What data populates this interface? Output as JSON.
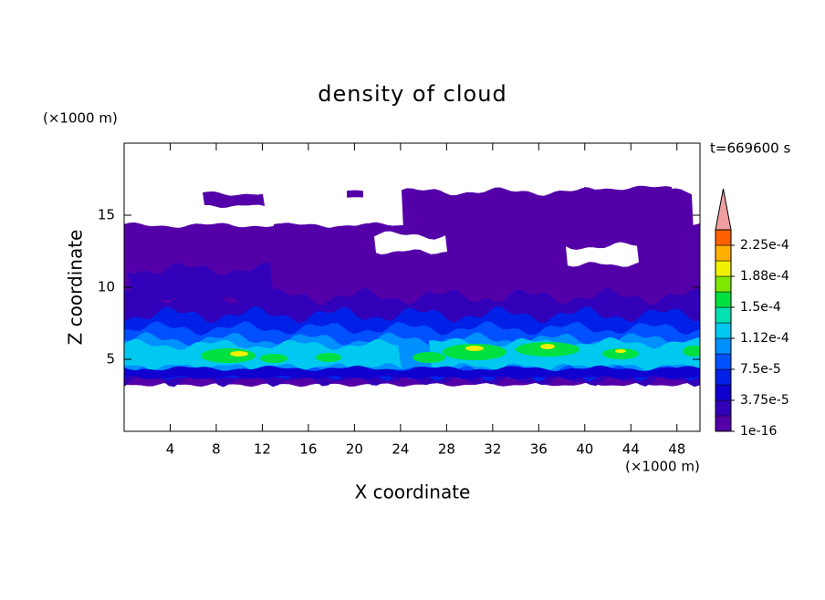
{
  "chart_data": {
    "type": "contour",
    "title": "density of cloud",
    "x_label": "X coordinate",
    "y_label": "Z coordinate",
    "x_unit": "(×1000 m)",
    "y_unit": "(×1000 m)",
    "annotation": "t=669600 s",
    "xlim": [
      0,
      50
    ],
    "xticks": [
      4,
      8,
      12,
      16,
      20,
      24,
      28,
      32,
      36,
      40,
      44,
      48
    ],
    "ylim": [
      0,
      20
    ],
    "yticks": [
      5,
      10,
      15
    ],
    "colorbar": {
      "lim": [
        1e-16,
        0.00024375
      ],
      "levels": [
        1e-16,
        1.875e-05,
        3.75e-05,
        5.625e-05,
        7.5e-05,
        9.375e-05,
        0.0001125,
        0.00013125,
        0.00015,
        0.00016875,
        0.0001875,
        0.00020625,
        0.000225,
        0.00024375
      ],
      "colors": [
        "#5400a8",
        "#3200b8",
        "#1000d0",
        "#0020e8",
        "#0050ff",
        "#0090ff",
        "#00c8f0",
        "#00e0b0",
        "#00e040",
        "#80e800",
        "#f0f000",
        "#ffb000",
        "#ff6000",
        "#f0a0a0"
      ],
      "ticks": [
        {
          "value": 1e-16,
          "label": "1e-16"
        },
        {
          "value": 3.75e-05,
          "label": "3.75e-5"
        },
        {
          "value": 7.5e-05,
          "label": "7.5e-5"
        },
        {
          "value": 0.0001125,
          "label": "1.12e-4"
        },
        {
          "value": 0.00015,
          "label": "1.5e-4"
        },
        {
          "value": 0.0001875,
          "label": "1.88e-4"
        },
        {
          "value": 0.000225,
          "label": "2.25e-4"
        }
      ]
    }
  }
}
